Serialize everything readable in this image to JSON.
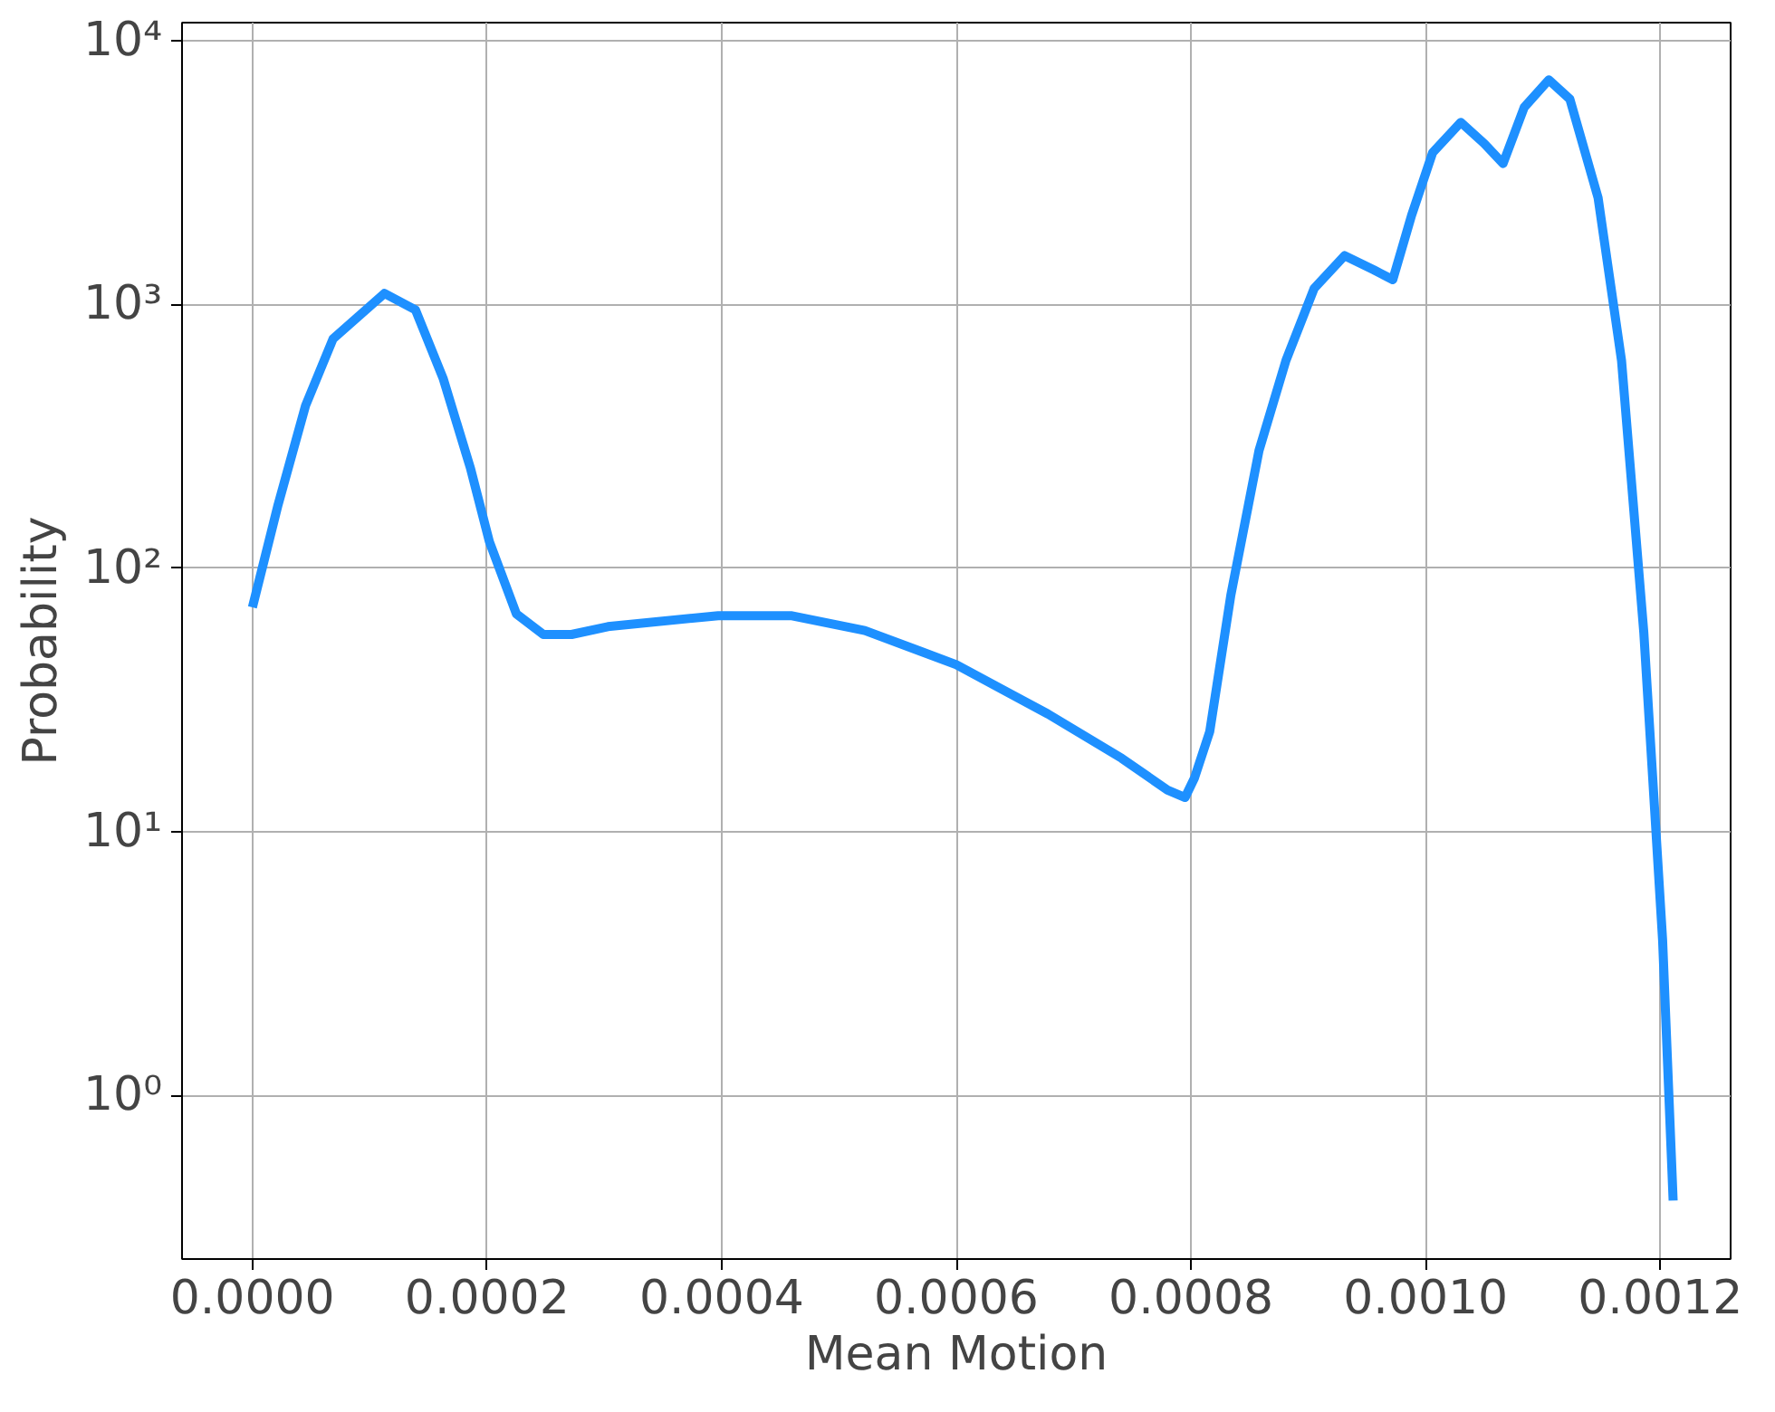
{
  "chart_data": {
    "type": "line",
    "xlabel": "Mean Motion",
    "ylabel": "Probability",
    "log": "y",
    "grid": true,
    "marker": "none",
    "line_style": "solid",
    "xlim": [
      -6e-05,
      0.00126
    ],
    "ylim": [
      0.24,
      11700
    ],
    "xticks": [
      {
        "value": 0,
        "label": "0.0000"
      },
      {
        "value": 0.0002,
        "label": "0.0002"
      },
      {
        "value": 0.0004,
        "label": "0.0004"
      },
      {
        "value": 0.0006,
        "label": "0.0006"
      },
      {
        "value": 0.0008,
        "label": "0.0008"
      },
      {
        "value": 0.001,
        "label": "0.0010"
      },
      {
        "value": 0.0012,
        "label": "0.0012"
      }
    ],
    "yticks": [
      {
        "value": 1,
        "label": "10⁰"
      },
      {
        "value": 10,
        "label": "10¹"
      },
      {
        "value": 100,
        "label": "10²"
      },
      {
        "value": 1000,
        "label": "10³"
      },
      {
        "value": 10000,
        "label": "10⁴"
      }
    ],
    "series": [
      {
        "color": "#1e90ff",
        "x": [
          0,
          2.19e-05,
          4.53e-05,
          6.88e-05,
          0.0001125,
          0.000139,
          0.0001625,
          0.000186,
          0.000202,
          0.000225,
          0.000248,
          0.000272,
          0.000303,
          0.000397,
          0.000459,
          0.000522,
          0.0006,
          0.000678,
          0.000741,
          0.00078,
          0.000795,
          0.000803,
          0.000816,
          0.000834,
          0.000858,
          0.000881,
          0.000905,
          0.000931,
          0.000956,
          0.000972,
          0.000988,
          0.001006,
          0.00103,
          0.00105,
          0.001066,
          0.001084,
          0.001105,
          0.001123,
          0.001147,
          0.001167,
          0.001186,
          0.001202,
          0.001211
        ],
        "values": [
          71,
          174,
          413,
          741,
          1100,
          953,
          525,
          238,
          126,
          67,
          56,
          56,
          60,
          66,
          66,
          58,
          43,
          28,
          19,
          14.4,
          13.5,
          16,
          24,
          79,
          279,
          613,
          1150,
          1530,
          1350,
          1240,
          2170,
          3760,
          4900,
          4070,
          3420,
          5580,
          7100,
          6000,
          2540,
          613,
          57,
          3.9,
          0.4
        ]
      }
    ]
  }
}
